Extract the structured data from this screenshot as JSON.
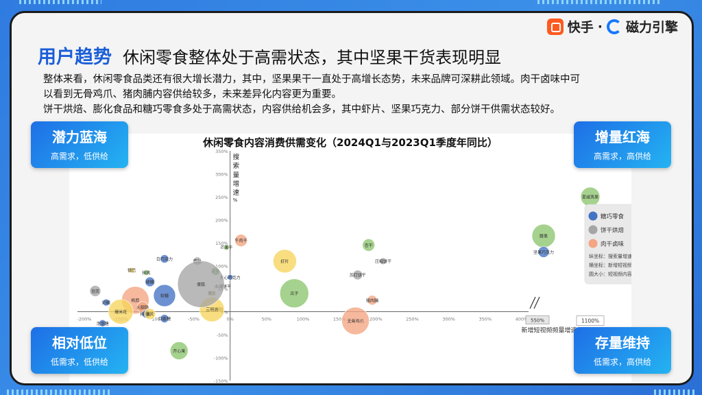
{
  "brand": {
    "kuaishou": "快手",
    "dot": "·",
    "cili": "磁力引擎"
  },
  "header": {
    "tag": "用户趋势",
    "title": "休闲零食整体处于高需状态，其中坚果干货表现明显"
  },
  "description": [
    "整体来看，休闲零食品类还有很大增长潜力，其中，坚果果干一直处于高增长态势，未来品牌可深耕此领域。肉干卤味中可",
    "以看到无骨鸡爪、猪肉脯内容供给较多，未来差异化内容更为重要。",
    "饼干烘焙、膨化食品和糖巧零食多处于高需状态，内容供给机会多，其中虾片、坚果巧克力、部分饼干供需状态较好。"
  ],
  "quadrants": {
    "top_left": {
      "title": "潜力蓝海",
      "sub": "高需求，低供给"
    },
    "top_right": {
      "title": "增量红海",
      "sub": "高需求，高供给"
    },
    "bottom_left": {
      "title": "相对低位",
      "sub": "低需求，低供给"
    },
    "bottom_right": {
      "title": "存量维持",
      "sub": "低需求，高供给"
    }
  },
  "chart_data": {
    "type": "scatter",
    "title": "休闲零食内容消费供需变化（2024Q1与2023Q1季度年同比）",
    "xlabel": "新增短视频频量增速",
    "ylabel": "搜索量增速%",
    "xlim": [
      -200,
      400
    ],
    "ylim": [
      -150,
      350
    ],
    "x_ticks": [
      "-200%",
      "-150%",
      "-100%",
      "-50%",
      "0%",
      "50%",
      "100%",
      "150%",
      "200%",
      "250%",
      "300%",
      "350%",
      "400%"
    ],
    "y_ticks": [
      "350%",
      "300%",
      "250%",
      "200%",
      "150%",
      "100%",
      "50%",
      "0%",
      "-50%",
      "-100%",
      "-150%"
    ],
    "x_break_labels": [
      "550%",
      "1100%"
    ],
    "legend": [
      {
        "name": "糖巧零食",
        "color": "#4472c4"
      },
      {
        "name": "膨化食品",
        "color": "#f6d55c"
      },
      {
        "name": "饼干烘焙",
        "color": "#a5a5a5"
      },
      {
        "name": "坚果果干",
        "color": "#8cc56e"
      },
      {
        "name": "肉干卤味",
        "color": "#f4a582"
      }
    ],
    "legend_notes": [
      "纵坐标：搜索量增速（%）",
      "横坐标：新增短视频频量增速（%）",
      "圆大小：短视频内容数量"
    ],
    "series": [
      {
        "label": "夏威夷果",
        "x": 1100,
        "y": 250,
        "size": 14,
        "cat": 3
      },
      {
        "label": "腰果",
        "x": 550,
        "y": 165,
        "size": 17,
        "cat": 3
      },
      {
        "label": "坚果巧克力",
        "x": 550,
        "y": 130,
        "size": 8,
        "cat": 0
      },
      {
        "label": "杏干",
        "x": 190,
        "y": 145,
        "size": 9,
        "cat": 3
      },
      {
        "label": "压缩饼干",
        "x": 210,
        "y": 110,
        "size": 5,
        "cat": 2
      },
      {
        "label": "苏打饼干",
        "x": 175,
        "y": 80,
        "size": 7,
        "cat": 2
      },
      {
        "label": "猪肉脯",
        "x": 195,
        "y": 25,
        "size": 7,
        "cat": 4
      },
      {
        "label": "无骨鸡爪",
        "x": 172,
        "y": -20,
        "size": 20,
        "cat": 4
      },
      {
        "label": "瓜子",
        "x": 88,
        "y": 40,
        "size": 21,
        "cat": 3
      },
      {
        "label": "虾片",
        "x": 75,
        "y": 110,
        "size": 17,
        "cat": 1
      },
      {
        "label": "牛肉干",
        "x": 15,
        "y": 155,
        "size": 9,
        "cat": 4
      },
      {
        "label": "芒果干",
        "x": -5,
        "y": 140,
        "size": 4,
        "cat": 3
      },
      {
        "label": "夹心巧克力",
        "x": 0,
        "y": 75,
        "size": 4,
        "cat": 0
      },
      {
        "label": "曲奇饼干",
        "x": -10,
        "y": 55,
        "size": 4,
        "cat": 2
      },
      {
        "label": "薯条",
        "x": -25,
        "y": 40,
        "size": 4,
        "cat": 1
      },
      {
        "label": "月饼",
        "x": -15,
        "y": 5,
        "size": 4,
        "cat": 2
      },
      {
        "label": "三明治",
        "x": -25,
        "y": 5,
        "size": 18,
        "cat": 1
      },
      {
        "label": "面包",
        "x": -45,
        "y": 110,
        "size": 6,
        "cat": 2
      },
      {
        "label": "花生",
        "x": -20,
        "y": 88,
        "size": 6,
        "cat": 3
      },
      {
        "label": "蛋糕",
        "x": -40,
        "y": 60,
        "size": 34,
        "cat": 2
      },
      {
        "label": "白巧克力",
        "x": -90,
        "y": 115,
        "size": 6,
        "cat": 0
      },
      {
        "label": "锅巴",
        "x": -135,
        "y": 90,
        "size": 4,
        "cat": 1
      },
      {
        "label": "核桃",
        "x": -115,
        "y": 85,
        "size": 4,
        "cat": 3
      },
      {
        "label": "硬糖",
        "x": -110,
        "y": 65,
        "size": 7,
        "cat": 0
      },
      {
        "label": "泡芙",
        "x": -185,
        "y": 45,
        "size": 8,
        "cat": 2
      },
      {
        "label": "软糖",
        "x": -90,
        "y": 35,
        "size": 16,
        "cat": 0
      },
      {
        "label": "奶糖",
        "x": -170,
        "y": 20,
        "size": 5,
        "cat": 0
      },
      {
        "label": "鸭脖",
        "x": -130,
        "y": 25,
        "size": 20,
        "cat": 4
      },
      {
        "label": "火腿肠",
        "x": -120,
        "y": 10,
        "size": 8,
        "cat": 4
      },
      {
        "label": "爆米花",
        "x": -150,
        "y": 0,
        "size": 18,
        "cat": 1
      },
      {
        "label": "棒棒糖",
        "x": -115,
        "y": -5,
        "size": 6,
        "cat": 0
      },
      {
        "label": "泡泡糖",
        "x": -175,
        "y": -25,
        "size": 5,
        "cat": 0
      },
      {
        "label": "口香糖",
        "x": -90,
        "y": -15,
        "size": 6,
        "cat": 0
      },
      {
        "label": "薯片",
        "x": -110,
        "y": -5,
        "size": 8,
        "cat": 1
      },
      {
        "label": "开心果",
        "x": -70,
        "y": -85,
        "size": 13,
        "cat": 3
      }
    ]
  }
}
